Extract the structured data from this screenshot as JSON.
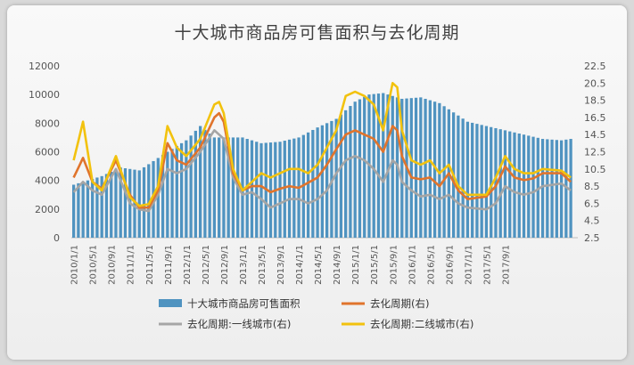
{
  "chart_data": {
    "type": "bar+line",
    "title": "十大城市商品房可售面积与去化周期",
    "x_tick_labels": [
      "2010/1/1",
      "2010/5/1",
      "2010/9/1",
      "2011/1/1",
      "2011/5/1",
      "2011/9/1",
      "2012/1/1",
      "2012/5/1",
      "2012/9/1",
      "2013/1/1",
      "2013/5/1",
      "2013/9/1",
      "2014/1/1",
      "2014/5/1",
      "2014/9/1",
      "2015/1/1",
      "2015/5/1",
      "2015/9/1",
      "2016/1/1",
      "2016/5/1",
      "2016/9/1",
      "2017/1/1",
      "2017/5/1",
      "2017/9/1"
    ],
    "y_left": {
      "min": 0,
      "max": 12000,
      "step": 2000,
      "ticks": [
        "0",
        "2000",
        "4000",
        "6000",
        "8000",
        "10000",
        "12000"
      ]
    },
    "y_right": {
      "min": 2.5,
      "max": 22.5,
      "step": 2,
      "ticks": [
        "2.5",
        "4.5",
        "6.5",
        "8.5",
        "10.5",
        "12.5",
        "14.5",
        "16.5",
        "18.5",
        "20.5",
        "22.5"
      ]
    },
    "grid": false,
    "legend_position": "bottom",
    "colors": {
      "bars": "#4f93c0",
      "turnover_all": "#e0742c",
      "turnover_tier1": "#a5a5a5",
      "turnover_tier2": "#f2c20e"
    },
    "series": [
      {
        "name": "十大城市商品房可售面积",
        "axis": "left",
        "type": "bar",
        "points": [
          [
            0,
            3700
          ],
          [
            6,
            4300
          ],
          [
            10,
            4900
          ],
          [
            14,
            4700
          ],
          [
            20,
            6000
          ],
          [
            24,
            6800
          ],
          [
            27,
            7800
          ],
          [
            30,
            7000
          ],
          [
            36,
            7000
          ],
          [
            40,
            6600
          ],
          [
            44,
            6700
          ],
          [
            48,
            7000
          ],
          [
            52,
            7700
          ],
          [
            56,
            8300
          ],
          [
            60,
            9500
          ],
          [
            63,
            10000
          ],
          [
            66,
            10100
          ],
          [
            70,
            9700
          ],
          [
            74,
            9800
          ],
          [
            78,
            9400
          ],
          [
            84,
            8100
          ],
          [
            88,
            7800
          ],
          [
            92,
            7500
          ],
          [
            96,
            7200
          ],
          [
            100,
            6900
          ],
          [
            104,
            6800
          ],
          [
            106,
            6900
          ]
        ]
      },
      {
        "name": "去化周期(右)",
        "axis": "right",
        "type": "line",
        "points": [
          [
            0,
            9.5
          ],
          [
            2,
            11.8
          ],
          [
            4,
            9
          ],
          [
            6,
            8.2
          ],
          [
            9,
            11.5
          ],
          [
            12,
            7.5
          ],
          [
            14,
            6
          ],
          [
            16,
            6
          ],
          [
            18,
            8
          ],
          [
            20,
            13.5
          ],
          [
            22,
            11.5
          ],
          [
            24,
            11
          ],
          [
            27,
            13
          ],
          [
            30,
            16.5
          ],
          [
            31,
            17
          ],
          [
            32,
            16
          ],
          [
            34,
            10
          ],
          [
            36,
            8
          ],
          [
            38,
            8.5
          ],
          [
            40,
            8.5
          ],
          [
            42,
            7.8
          ],
          [
            44,
            8.2
          ],
          [
            46,
            8.5
          ],
          [
            48,
            8.3
          ],
          [
            52,
            9.5
          ],
          [
            54,
            11
          ],
          [
            56,
            12.8
          ],
          [
            58,
            14.5
          ],
          [
            60,
            15
          ],
          [
            62,
            14.5
          ],
          [
            64,
            14
          ],
          [
            66,
            12.5
          ],
          [
            68,
            15.5
          ],
          [
            69,
            15
          ],
          [
            70,
            12
          ],
          [
            72,
            9.5
          ],
          [
            74,
            9.3
          ],
          [
            76,
            9.5
          ],
          [
            78,
            8.5
          ],
          [
            80,
            10
          ],
          [
            82,
            8
          ],
          [
            84,
            7
          ],
          [
            88,
            7.3
          ],
          [
            90,
            8.5
          ],
          [
            92,
            10.8
          ],
          [
            94,
            9.5
          ],
          [
            96,
            9.2
          ],
          [
            98,
            9.4
          ],
          [
            100,
            10
          ],
          [
            104,
            10
          ],
          [
            106,
            9
          ]
        ]
      },
      {
        "name": "去化周期:一线城市(右)",
        "axis": "right",
        "type": "line",
        "points": [
          [
            0,
            7.8
          ],
          [
            2,
            9
          ],
          [
            4,
            8
          ],
          [
            6,
            7.5
          ],
          [
            9,
            10.5
          ],
          [
            12,
            6.5
          ],
          [
            14,
            5.8
          ],
          [
            16,
            5.6
          ],
          [
            18,
            7.5
          ],
          [
            20,
            10.5
          ],
          [
            22,
            10
          ],
          [
            24,
            10.5
          ],
          [
            27,
            12.5
          ],
          [
            30,
            15
          ],
          [
            32,
            14
          ],
          [
            34,
            9.5
          ],
          [
            36,
            7.5
          ],
          [
            38,
            7.8
          ],
          [
            40,
            7
          ],
          [
            42,
            6
          ],
          [
            44,
            6.5
          ],
          [
            46,
            7
          ],
          [
            48,
            7
          ],
          [
            50,
            6.5
          ],
          [
            52,
            7
          ],
          [
            54,
            8
          ],
          [
            56,
            10
          ],
          [
            58,
            11.5
          ],
          [
            60,
            12
          ],
          [
            62,
            11.5
          ],
          [
            64,
            10.5
          ],
          [
            66,
            9
          ],
          [
            68,
            11.5
          ],
          [
            69,
            11
          ],
          [
            70,
            9
          ],
          [
            72,
            8
          ],
          [
            74,
            7.3
          ],
          [
            76,
            7.5
          ],
          [
            78,
            7
          ],
          [
            80,
            7.5
          ],
          [
            82,
            6.5
          ],
          [
            84,
            6
          ],
          [
            88,
            5.8
          ],
          [
            90,
            6.5
          ],
          [
            92,
            8.5
          ],
          [
            94,
            7.8
          ],
          [
            96,
            7.5
          ],
          [
            98,
            7.8
          ],
          [
            100,
            8.5
          ],
          [
            104,
            8.8
          ],
          [
            106,
            8
          ]
        ]
      },
      {
        "name": "去化周期:二线城市(右)",
        "axis": "right",
        "type": "line",
        "points": [
          [
            0,
            11.5
          ],
          [
            2,
            16
          ],
          [
            4,
            9
          ],
          [
            6,
            8
          ],
          [
            9,
            12
          ],
          [
            12,
            7.2
          ],
          [
            14,
            6.2
          ],
          [
            16,
            6.4
          ],
          [
            18,
            8.5
          ],
          [
            20,
            15.5
          ],
          [
            22,
            13
          ],
          [
            24,
            12
          ],
          [
            27,
            14
          ],
          [
            30,
            18
          ],
          [
            31,
            18.3
          ],
          [
            32,
            17
          ],
          [
            34,
            10.5
          ],
          [
            36,
            8
          ],
          [
            38,
            9
          ],
          [
            40,
            10
          ],
          [
            42,
            9.5
          ],
          [
            44,
            10
          ],
          [
            46,
            10.5
          ],
          [
            48,
            10.5
          ],
          [
            50,
            10
          ],
          [
            52,
            11
          ],
          [
            54,
            13
          ],
          [
            56,
            15
          ],
          [
            58,
            19
          ],
          [
            60,
            19.5
          ],
          [
            62,
            19
          ],
          [
            64,
            18
          ],
          [
            66,
            15
          ],
          [
            68,
            20.5
          ],
          [
            69,
            20
          ],
          [
            70,
            15
          ],
          [
            72,
            11.5
          ],
          [
            74,
            11
          ],
          [
            76,
            11.5
          ],
          [
            78,
            10
          ],
          [
            80,
            11
          ],
          [
            82,
            8.5
          ],
          [
            84,
            7.5
          ],
          [
            88,
            7.5
          ],
          [
            90,
            9.5
          ],
          [
            92,
            12
          ],
          [
            94,
            10.5
          ],
          [
            96,
            10
          ],
          [
            98,
            10
          ],
          [
            100,
            10.5
          ],
          [
            104,
            10.3
          ],
          [
            106,
            9.5
          ]
        ]
      }
    ]
  }
}
